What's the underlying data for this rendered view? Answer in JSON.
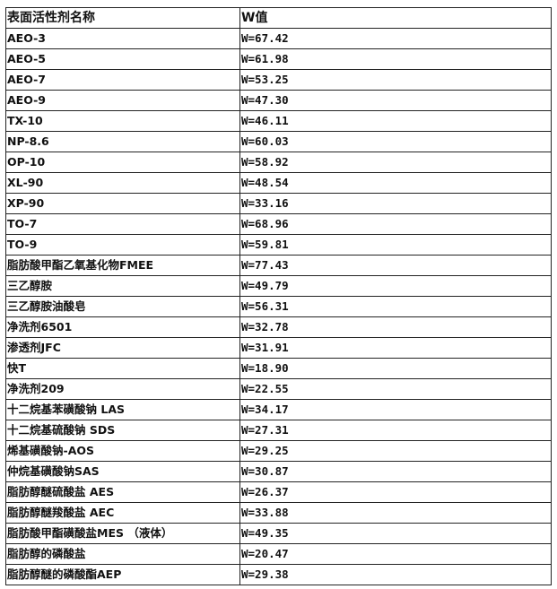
{
  "table": {
    "headers": [
      "表面活性剂名称",
      "W值"
    ],
    "rows": [
      [
        "AEO-3",
        "W=67.42"
      ],
      [
        "AEO-5",
        "W=61.98"
      ],
      [
        "AEO-7",
        "W=53.25"
      ],
      [
        "AEO-9",
        "W=47.30"
      ],
      [
        "TX-10",
        "W=46.11"
      ],
      [
        "NP-8.6",
        "W=60.03"
      ],
      [
        "OP-10",
        "W=58.92"
      ],
      [
        "XL-90",
        "W=48.54"
      ],
      [
        "XP-90",
        "W=33.16"
      ],
      [
        "TO-7",
        "W=68.96"
      ],
      [
        "TO-9",
        "W=59.81"
      ],
      [
        "脂肪酸甲酯乙氧基化物FMEE",
        "W=77.43"
      ],
      [
        "三乙醇胺",
        "W=49.79"
      ],
      [
        "三乙醇胺油酸皂",
        "W=56.31"
      ],
      [
        "净洗剂6501",
        "W=32.78"
      ],
      [
        "渗透剂JFC",
        "W=31.91"
      ],
      [
        "快T",
        "W=18.90"
      ],
      [
        "净洗剂209",
        "W=22.55"
      ],
      [
        "十二烷基苯磺酸钠 LAS",
        "W=34.17"
      ],
      [
        "十二烷基硫酸钠 SDS",
        "W=27.31"
      ],
      [
        "烯基磺酸钠-AOS",
        "W=29.25"
      ],
      [
        "仲烷基磺酸钠SAS",
        "W=30.87"
      ],
      [
        "脂肪醇醚硫酸盐 AES",
        "W=26.37"
      ],
      [
        "脂肪醇醚羧酸盐 AEC",
        "W=33.88"
      ],
      [
        "脂肪酸甲酯磺酸盐MES （液体）",
        "W=49.35"
      ],
      [
        "脂肪醇的磷酸盐",
        "W=20.47"
      ],
      [
        "脂肪醇醚的磷酸酯AEP",
        "W=29.38"
      ]
    ]
  }
}
